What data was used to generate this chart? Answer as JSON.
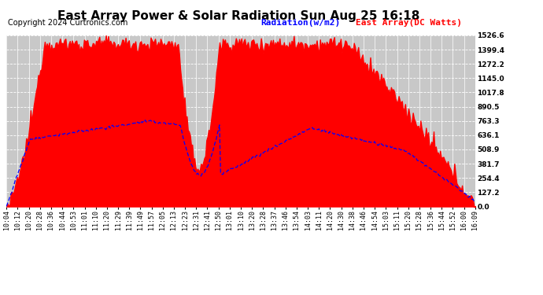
{
  "title": "East Array Power & Solar Radiation Sun Aug 25 16:18",
  "copyright": "Copyright 2024 Curtronics.com",
  "legend_radiation": "Radiation(w/m2)",
  "legend_array": "East Array(DC Watts)",
  "legend_radiation_color": "#0000ff",
  "legend_array_color": "#ff0000",
  "ylabel_right_values": [
    0.0,
    127.2,
    254.4,
    381.7,
    508.9,
    636.1,
    763.3,
    890.5,
    1017.8,
    1145.0,
    1272.2,
    1399.4,
    1526.6
  ],
  "ymax": 1526.6,
  "ymin": 0.0,
  "background_color": "#ffffff",
  "plot_bg_color": "#c8c8c8",
  "bar_color": "#ff0000",
  "line_color": "#0000ff",
  "x_labels": [
    "10:04",
    "10:12",
    "10:20",
    "10:28",
    "10:36",
    "10:44",
    "10:53",
    "11:01",
    "11:10",
    "11:20",
    "11:29",
    "11:39",
    "11:49",
    "11:57",
    "12:05",
    "12:13",
    "12:23",
    "12:31",
    "12:41",
    "12:50",
    "13:01",
    "13:10",
    "13:20",
    "13:28",
    "13:37",
    "13:46",
    "13:54",
    "14:03",
    "14:11",
    "14:20",
    "14:30",
    "14:38",
    "14:46",
    "14:54",
    "15:03",
    "15:11",
    "15:20",
    "15:28",
    "15:36",
    "15:44",
    "15:52",
    "16:00",
    "16:09"
  ],
  "title_fontsize": 11,
  "tick_fontsize": 6.0,
  "copyright_fontsize": 7,
  "legend_fontsize": 8
}
